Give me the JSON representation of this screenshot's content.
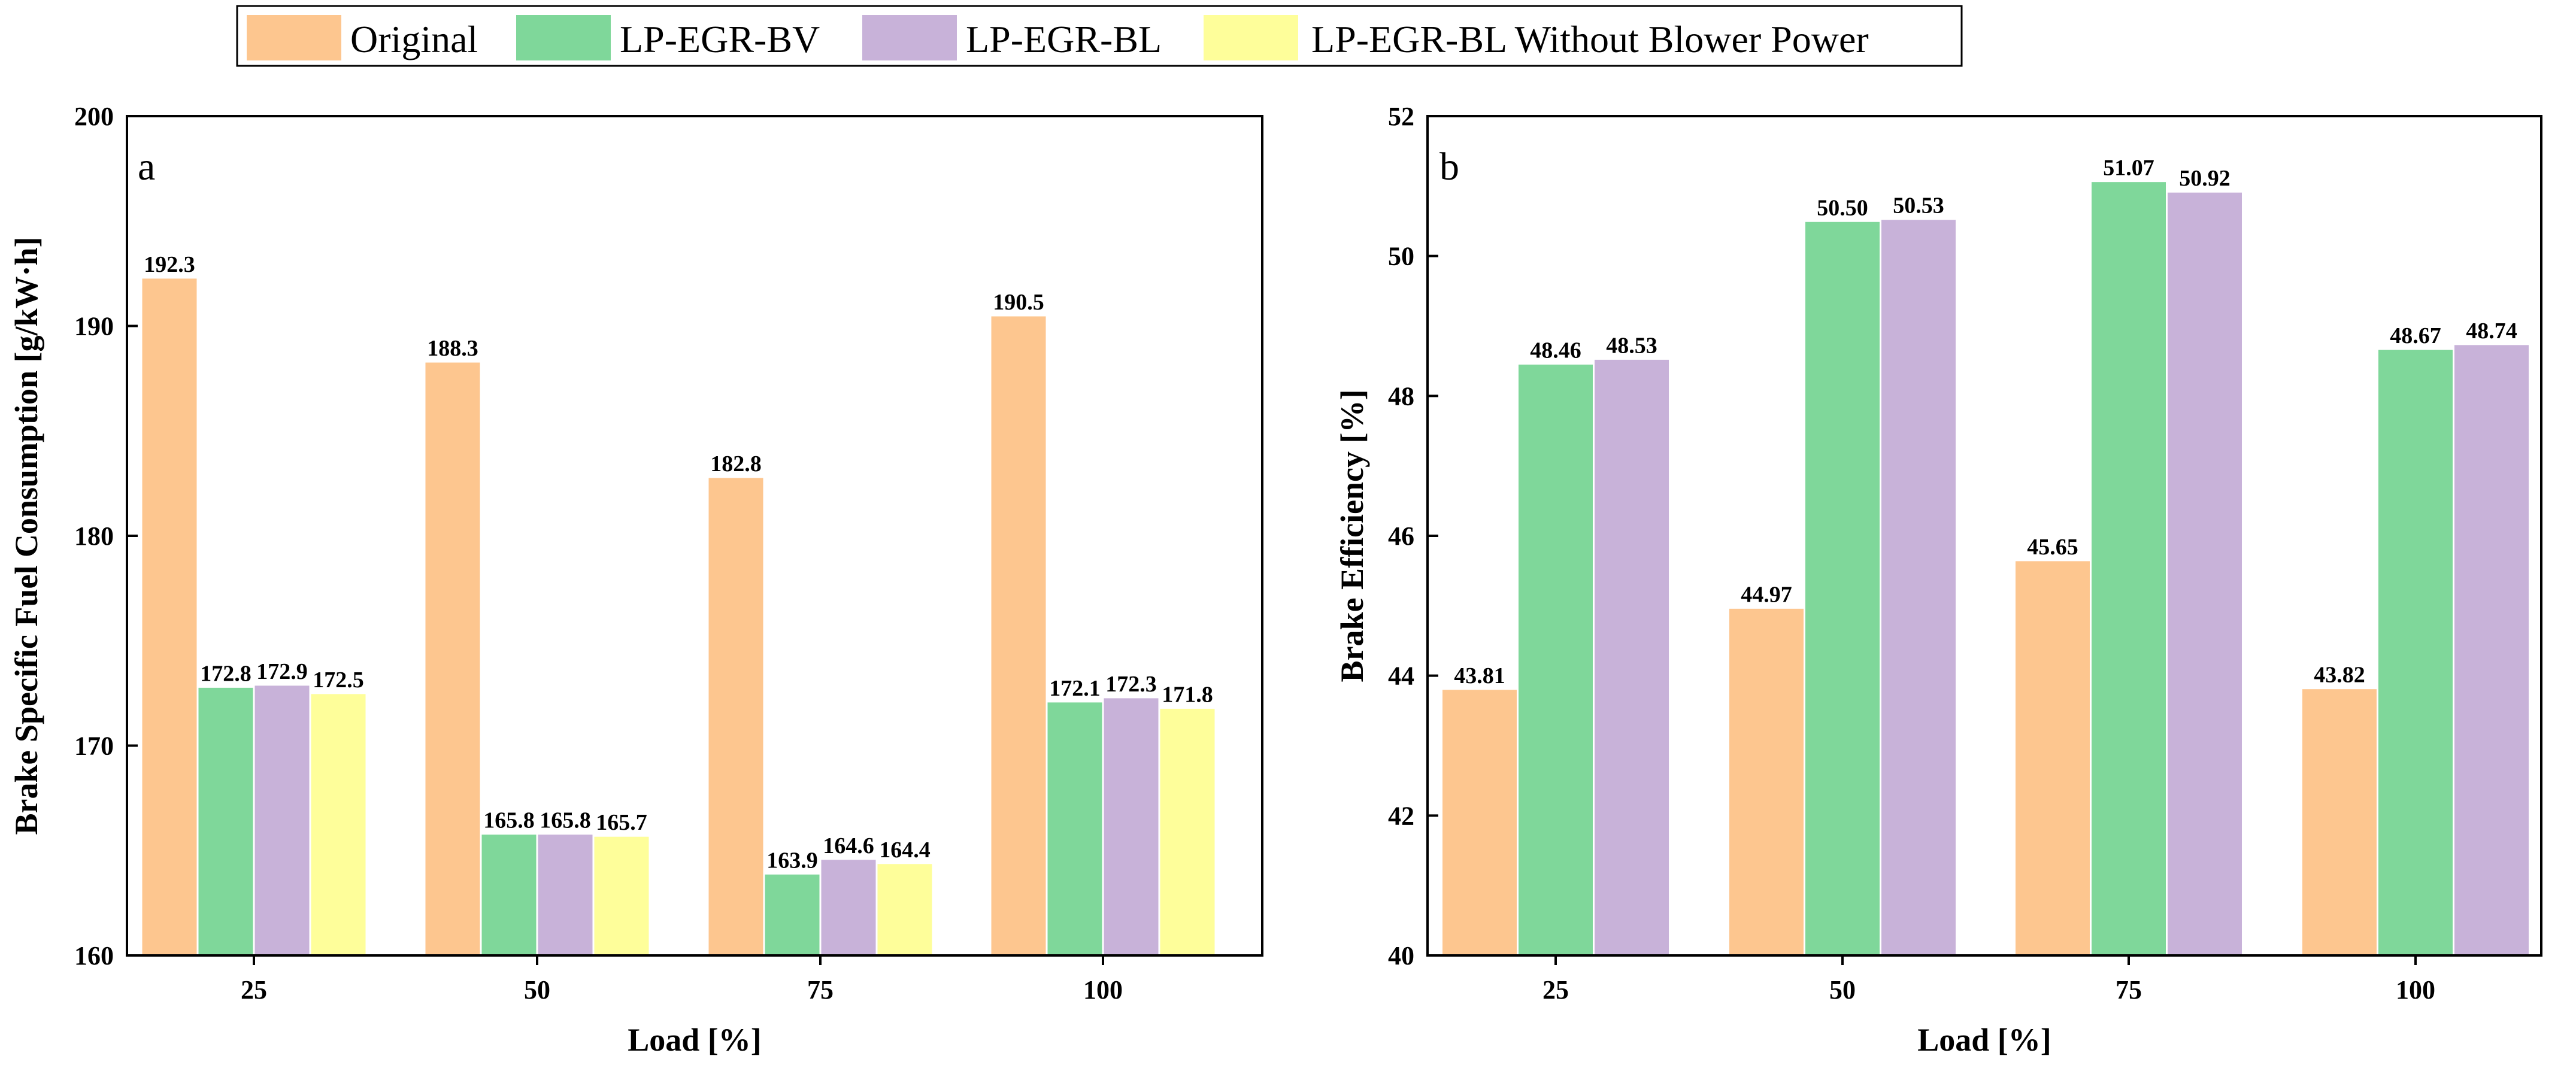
{
  "colors": {
    "Original": "#fdc68f",
    "LP-EGR-BV": "#7fd79a",
    "LP-EGR-BL": "#c8b2d9",
    "LP-EGR-BL Without Blower Power": "#fefe9a"
  },
  "legend": {
    "entries": [
      "Original",
      "LP-EGR-BV",
      "LP-EGR-BL",
      "LP-EGR-BL Without Blower Power"
    ]
  },
  "chart_data": [
    {
      "type": "bar",
      "panel": "a",
      "title": "",
      "xlabel": "Load [%]",
      "ylabel": "Brake Specific Fuel Consumption [g/kW·h]",
      "categories": [
        "25",
        "50",
        "75",
        "100"
      ],
      "ylim": [
        160,
        200
      ],
      "yticks": [
        160,
        170,
        180,
        190,
        200
      ],
      "grid": false,
      "legend_position": "top (shared)",
      "series": [
        {
          "name": "Original",
          "values": [
            192.3,
            188.3,
            182.8,
            190.5
          ],
          "labels": [
            "192.3",
            "188.3",
            "182.8",
            "190.5"
          ]
        },
        {
          "name": "LP-EGR-BV",
          "values": [
            172.8,
            165.8,
            163.9,
            172.1
          ],
          "labels": [
            "172.8",
            "165.8",
            "163.9",
            "172.1"
          ]
        },
        {
          "name": "LP-EGR-BL",
          "values": [
            172.9,
            165.8,
            164.6,
            172.3
          ],
          "labels": [
            "172.9",
            "165.8",
            "164.6",
            "172.3"
          ]
        },
        {
          "name": "LP-EGR-BL Without Blower Power",
          "values": [
            172.5,
            165.7,
            164.4,
            171.8
          ],
          "labels": [
            "172.5",
            "165.7",
            "164.4",
            "171.8"
          ]
        }
      ]
    },
    {
      "type": "bar",
      "panel": "b",
      "title": "",
      "xlabel": "Load [%]",
      "ylabel": "Brake Efficiency [%]",
      "categories": [
        "25",
        "50",
        "75",
        "100"
      ],
      "ylim": [
        40,
        52
      ],
      "yticks": [
        40,
        42,
        44,
        46,
        48,
        50,
        52
      ],
      "grid": false,
      "legend_position": "top (shared)",
      "series": [
        {
          "name": "Original",
          "values": [
            43.81,
            44.97,
            45.65,
            43.82
          ],
          "labels": [
            "43.81",
            "44.97",
            "45.65",
            "43.82"
          ]
        },
        {
          "name": "LP-EGR-BV",
          "values": [
            48.46,
            50.5,
            51.07,
            48.67
          ],
          "labels": [
            "48.46",
            "50.50",
            "51.07",
            "48.67"
          ]
        },
        {
          "name": "LP-EGR-BL",
          "values": [
            48.53,
            50.53,
            50.92,
            48.74
          ],
          "labels": [
            "48.53",
            "50.53",
            "50.92",
            "48.74"
          ]
        }
      ]
    }
  ]
}
